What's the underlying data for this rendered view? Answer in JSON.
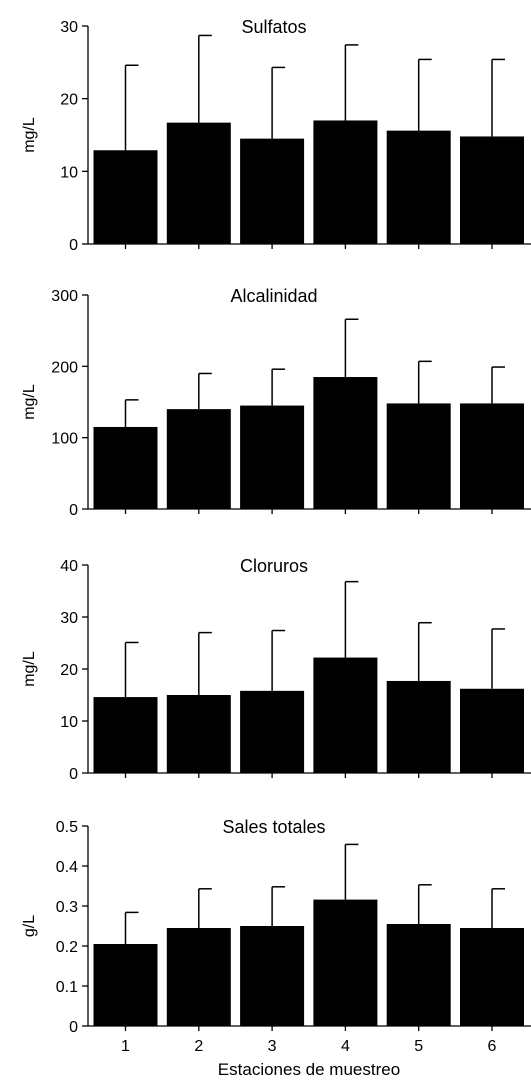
{
  "chart_data": [
    {
      "type": "bar",
      "title": "Sulfatos",
      "ylabel": "mg/L",
      "xlabel": "",
      "categories": [
        "1",
        "2",
        "3",
        "4",
        "5",
        "6"
      ],
      "values": [
        12.9,
        16.7,
        14.5,
        17.0,
        15.6,
        14.8
      ],
      "error_upper": [
        24.6,
        28.7,
        24.3,
        27.4,
        25.4,
        25.4
      ],
      "ylim": [
        0,
        30
      ],
      "yticks": [
        "0",
        "10",
        "20",
        "30"
      ],
      "show_xtick_labels": false
    },
    {
      "type": "bar",
      "title": "Alcalinidad",
      "ylabel": "mg/L",
      "xlabel": "",
      "categories": [
        "1",
        "2",
        "3",
        "4",
        "5",
        "6"
      ],
      "values": [
        115,
        140,
        145,
        185,
        148,
        148
      ],
      "error_upper": [
        153,
        190,
        196,
        266,
        207,
        199
      ],
      "ylim": [
        0,
        300
      ],
      "yticks": [
        "0",
        "100",
        "200",
        "300"
      ],
      "show_xtick_labels": false
    },
    {
      "type": "bar",
      "title": "Cloruros",
      "ylabel": "mg/L",
      "xlabel": "",
      "categories": [
        "1",
        "2",
        "3",
        "4",
        "5",
        "6"
      ],
      "values": [
        14.6,
        15.0,
        15.8,
        22.2,
        17.7,
        16.2
      ],
      "error_upper": [
        25.1,
        27.0,
        27.4,
        36.8,
        28.9,
        27.7
      ],
      "ylim": [
        0,
        40
      ],
      "yticks": [
        "0",
        "10",
        "20",
        "30",
        "40"
      ],
      "show_xtick_labels": false
    },
    {
      "type": "bar",
      "title": "Sales totales",
      "ylabel": "g/L",
      "xlabel": "Estaciones de muestreo",
      "categories": [
        "1",
        "2",
        "3",
        "4",
        "5",
        "6"
      ],
      "values": [
        0.205,
        0.245,
        0.25,
        0.316,
        0.255,
        0.245
      ],
      "error_upper": [
        0.284,
        0.343,
        0.348,
        0.454,
        0.353,
        0.343
      ],
      "ylim": [
        0,
        0.5
      ],
      "yticks": [
        "0",
        "0.1",
        "0.2",
        "0.3",
        "0.4",
        "0.5"
      ],
      "show_xtick_labels": true
    }
  ]
}
